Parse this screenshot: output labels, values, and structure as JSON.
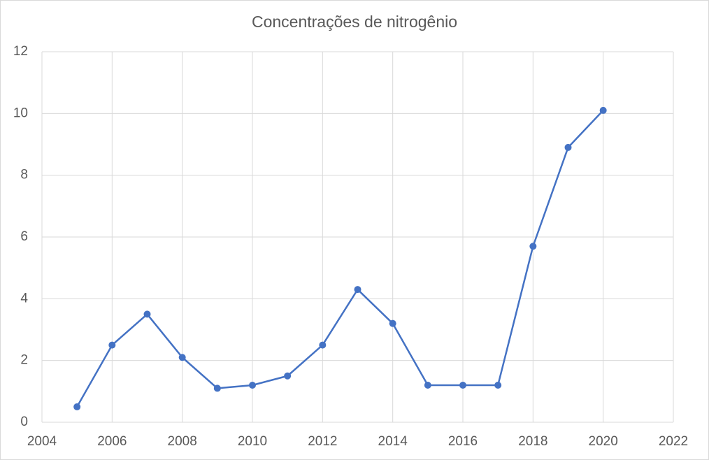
{
  "chart_data": {
    "type": "line",
    "title": "Concentrações de nitrogênio",
    "x": [
      2005,
      2006,
      2007,
      2008,
      2009,
      2010,
      2011,
      2012,
      2013,
      2014,
      2015,
      2016,
      2017,
      2018,
      2019,
      2020
    ],
    "values": [
      0.5,
      2.5,
      3.5,
      2.1,
      1.1,
      1.2,
      1.5,
      2.5,
      4.3,
      3.2,
      1.2,
      1.2,
      1.2,
      5.7,
      8.9,
      10.1
    ],
    "color": "#4472c4",
    "xlim": [
      2004,
      2022
    ],
    "xticks": [
      2004,
      2006,
      2008,
      2010,
      2012,
      2014,
      2016,
      2018,
      2020,
      2022
    ],
    "ylim": [
      0,
      12
    ],
    "yticks": [
      0,
      2,
      4,
      6,
      8,
      10,
      12
    ],
    "grid": true
  }
}
